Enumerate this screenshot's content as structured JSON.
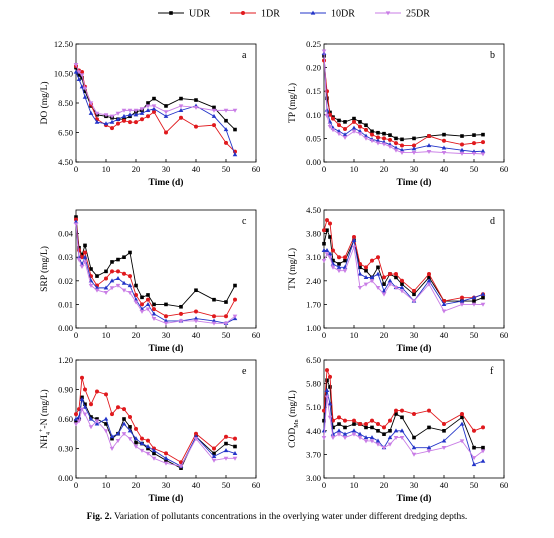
{
  "legend": [
    {
      "name": "UDR",
      "color": "#000000",
      "marker": "square"
    },
    {
      "name": "1DR",
      "color": "#e0191d",
      "marker": "circle"
    },
    {
      "name": "10DR",
      "color": "#2334c8",
      "marker": "triangle"
    },
    {
      "name": "25DR",
      "color": "#c97de6",
      "marker": "triangle-down"
    }
  ],
  "caption": {
    "label": "Fig. 2.",
    "text": "Variation of pollutants concentrations in the overlying water under different dredging depths."
  },
  "chart_data": [
    {
      "type": "line",
      "panel_label": "a",
      "xlabel": "Time (d)",
      "ylabel": "DO (mg/L)",
      "xlim": [
        0,
        60
      ],
      "ylim": [
        4.5,
        12.5
      ],
      "xticks": [
        "0",
        "10",
        "20",
        "30",
        "40",
        "50",
        "60"
      ],
      "yticks": [
        "4.50",
        "6.50",
        "8.50",
        "10.50",
        "12.50"
      ],
      "x": [
        0,
        1,
        2,
        3,
        5,
        7,
        10,
        12,
        14,
        16,
        18,
        20,
        22,
        24,
        26,
        30,
        35,
        40,
        46,
        50,
        53
      ],
      "series": [
        {
          "name": "UDR",
          "values": [
            10.9,
            10.4,
            10.2,
            9.3,
            8.3,
            7.7,
            7.6,
            7.5,
            7.4,
            7.4,
            7.6,
            7.9,
            8.0,
            8.5,
            8.8,
            8.3,
            8.8,
            8.7,
            8.2,
            7.3,
            6.7
          ]
        },
        {
          "name": "1DR",
          "values": [
            11.0,
            10.7,
            10.6,
            9.6,
            8.4,
            7.4,
            7.0,
            6.8,
            7.1,
            7.3,
            7.2,
            7.2,
            7.4,
            7.6,
            7.9,
            6.5,
            7.5,
            6.9,
            7.0,
            5.8,
            5.2
          ]
        },
        {
          "name": "10DR",
          "values": [
            10.6,
            10.1,
            9.6,
            8.9,
            7.8,
            7.2,
            7.1,
            7.2,
            7.4,
            7.6,
            7.7,
            7.7,
            7.8,
            8.0,
            8.1,
            7.6,
            8.0,
            8.3,
            7.6,
            6.7,
            5.0
          ]
        },
        {
          "name": "25DR",
          "values": [
            11.1,
            10.6,
            10.4,
            9.5,
            8.5,
            7.8,
            7.7,
            7.6,
            7.8,
            8.0,
            8.0,
            8.0,
            8.1,
            8.3,
            8.3,
            7.9,
            8.3,
            8.2,
            8.0,
            8.0,
            8.0
          ]
        }
      ]
    },
    {
      "type": "line",
      "panel_label": "b",
      "xlabel": "Time (d)",
      "ylabel": "TP (mg/L)",
      "xlim": [
        0,
        60
      ],
      "ylim": [
        0,
        0.25
      ],
      "xticks": [
        "0",
        "10",
        "20",
        "30",
        "40",
        "50",
        "60"
      ],
      "yticks": [
        "0.00",
        "0.05",
        "0.10",
        "0.15",
        "0.20",
        "0.25"
      ],
      "x": [
        0,
        1,
        2,
        3,
        5,
        7,
        10,
        12,
        14,
        16,
        18,
        20,
        22,
        24,
        26,
        30,
        35,
        40,
        46,
        50,
        53
      ],
      "series": [
        {
          "name": "UDR",
          "values": [
            0.225,
            0.135,
            0.105,
            0.095,
            0.088,
            0.085,
            0.092,
            0.085,
            0.078,
            0.065,
            0.062,
            0.06,
            0.057,
            0.05,
            0.048,
            0.05,
            0.055,
            0.058,
            0.055,
            0.057,
            0.058
          ]
        },
        {
          "name": "1DR",
          "values": [
            0.215,
            0.15,
            0.1,
            0.092,
            0.078,
            0.07,
            0.085,
            0.075,
            0.068,
            0.058,
            0.052,
            0.05,
            0.047,
            0.04,
            0.035,
            0.035,
            0.055,
            0.045,
            0.037,
            0.04,
            0.042
          ]
        },
        {
          "name": "10DR",
          "values": [
            0.23,
            0.11,
            0.085,
            0.072,
            0.065,
            0.058,
            0.072,
            0.065,
            0.055,
            0.048,
            0.045,
            0.042,
            0.037,
            0.03,
            0.025,
            0.028,
            0.035,
            0.03,
            0.025,
            0.022,
            0.023
          ]
        },
        {
          "name": "25DR",
          "values": [
            0.235,
            0.098,
            0.075,
            0.068,
            0.06,
            0.052,
            0.065,
            0.06,
            0.05,
            0.045,
            0.04,
            0.038,
            0.033,
            0.025,
            0.02,
            0.02,
            0.022,
            0.02,
            0.018,
            0.018,
            0.017
          ]
        }
      ]
    },
    {
      "type": "line",
      "panel_label": "c",
      "xlabel": "Time (d)",
      "ylabel": "SRP (mg/L)",
      "xlim": [
        0,
        60
      ],
      "ylim": [
        0,
        0.05
      ],
      "xticks": [
        "0",
        "10",
        "20",
        "30",
        "40",
        "50",
        "60"
      ],
      "yticks": [
        "0.00",
        "0.01",
        "0.02",
        "0.03",
        "0.04"
      ],
      "x": [
        0,
        1,
        2,
        3,
        5,
        7,
        10,
        12,
        14,
        16,
        18,
        20,
        22,
        24,
        26,
        30,
        35,
        40,
        46,
        50,
        53
      ],
      "series": [
        {
          "name": "UDR",
          "values": [
            0.047,
            0.034,
            0.031,
            0.035,
            0.025,
            0.022,
            0.024,
            0.028,
            0.029,
            0.03,
            0.032,
            0.018,
            0.013,
            0.014,
            0.01,
            0.01,
            0.009,
            0.016,
            0.012,
            0.011,
            0.018
          ]
        },
        {
          "name": "1DR",
          "values": [
            0.046,
            0.033,
            0.03,
            0.032,
            0.022,
            0.018,
            0.021,
            0.024,
            0.024,
            0.023,
            0.022,
            0.014,
            0.01,
            0.012,
            0.008,
            0.005,
            0.006,
            0.007,
            0.005,
            0.005,
            0.012
          ]
        },
        {
          "name": "10DR",
          "values": [
            0.045,
            0.03,
            0.027,
            0.03,
            0.02,
            0.017,
            0.017,
            0.02,
            0.021,
            0.019,
            0.018,
            0.012,
            0.008,
            0.01,
            0.006,
            0.003,
            0.003,
            0.004,
            0.003,
            0.002,
            0.004
          ]
        },
        {
          "name": "25DR",
          "values": [
            0.044,
            0.029,
            0.026,
            0.028,
            0.018,
            0.016,
            0.015,
            0.017,
            0.018,
            0.016,
            0.015,
            0.011,
            0.007,
            0.008,
            0.004,
            0.002,
            0.003,
            0.003,
            0.002,
            0.002,
            0.005
          ]
        }
      ]
    },
    {
      "type": "line",
      "panel_label": "d",
      "xlabel": "Time (d)",
      "ylabel": "TN (mg/L)",
      "xlim": [
        0,
        60
      ],
      "ylim": [
        1.0,
        4.5
      ],
      "xticks": [
        "0",
        "10",
        "20",
        "30",
        "40",
        "50",
        "60"
      ],
      "yticks": [
        "1.00",
        "1.70",
        "2.40",
        "3.10",
        "3.80",
        "4.50"
      ],
      "x": [
        0,
        1,
        2,
        3,
        5,
        7,
        10,
        12,
        14,
        16,
        18,
        20,
        22,
        24,
        26,
        30,
        35,
        40,
        46,
        50,
        53
      ],
      "series": [
        {
          "name": "UDR",
          "values": [
            3.5,
            3.9,
            3.7,
            3.0,
            2.9,
            3.0,
            3.6,
            2.8,
            2.7,
            2.5,
            2.8,
            2.3,
            2.6,
            2.5,
            2.3,
            2.0,
            2.5,
            1.8,
            1.8,
            1.8,
            1.9
          ]
        },
        {
          "name": "1DR",
          "values": [
            3.9,
            4.2,
            4.1,
            3.3,
            3.1,
            3.1,
            3.7,
            2.9,
            2.8,
            3.0,
            3.1,
            2.5,
            2.6,
            2.6,
            2.4,
            2.1,
            2.6,
            1.8,
            1.9,
            1.9,
            2.0
          ]
        },
        {
          "name": "10DR",
          "values": [
            3.3,
            3.3,
            3.2,
            2.9,
            2.8,
            2.8,
            3.6,
            2.6,
            2.5,
            2.5,
            2.6,
            2.1,
            2.4,
            2.2,
            2.2,
            1.8,
            2.4,
            1.7,
            1.8,
            1.9,
            2.0
          ]
        },
        {
          "name": "25DR",
          "values": [
            3.0,
            3.2,
            3.1,
            2.8,
            2.7,
            2.7,
            3.4,
            2.2,
            2.3,
            2.4,
            2.2,
            2.0,
            2.3,
            2.2,
            2.1,
            1.8,
            2.3,
            1.5,
            1.7,
            1.7,
            1.7
          ]
        }
      ]
    },
    {
      "type": "line",
      "panel_label": "e",
      "xlabel": "Time (d)",
      "ylabel": "NH4+-N (mg/L)",
      "xlim": [
        0,
        60
      ],
      "ylim": [
        0,
        1.2
      ],
      "xticks": [
        "0",
        "10",
        "20",
        "30",
        "40",
        "50",
        "60"
      ],
      "yticks": [
        "0.00",
        "0.30",
        "0.60",
        "0.90",
        "1.20"
      ],
      "x": [
        0,
        1,
        2,
        3,
        5,
        7,
        10,
        12,
        14,
        16,
        18,
        20,
        22,
        24,
        26,
        30,
        35,
        40,
        46,
        50,
        53
      ],
      "series": [
        {
          "name": "UDR",
          "values": [
            0.58,
            0.6,
            0.82,
            0.75,
            0.62,
            0.6,
            0.55,
            0.4,
            0.45,
            0.6,
            0.52,
            0.36,
            0.35,
            0.3,
            0.25,
            0.18,
            0.1,
            0.42,
            0.25,
            0.35,
            0.32
          ]
        },
        {
          "name": "1DR",
          "values": [
            0.65,
            0.7,
            1.02,
            0.9,
            0.75,
            0.88,
            0.85,
            0.65,
            0.72,
            0.7,
            0.62,
            0.5,
            0.4,
            0.38,
            0.3,
            0.25,
            0.16,
            0.45,
            0.3,
            0.42,
            0.4
          ]
        },
        {
          "name": "10DR",
          "values": [
            0.6,
            0.62,
            0.8,
            0.72,
            0.6,
            0.55,
            0.6,
            0.42,
            0.45,
            0.55,
            0.48,
            0.4,
            0.35,
            0.32,
            0.28,
            0.2,
            0.12,
            0.42,
            0.22,
            0.28,
            0.25
          ]
        },
        {
          "name": "25DR",
          "values": [
            0.55,
            0.58,
            0.7,
            0.65,
            0.52,
            0.58,
            0.48,
            0.3,
            0.38,
            0.45,
            0.4,
            0.32,
            0.28,
            0.25,
            0.2,
            0.15,
            0.12,
            0.4,
            0.18,
            0.2,
            0.2
          ]
        }
      ]
    },
    {
      "type": "line",
      "panel_label": "f",
      "xlabel": "Time (d)",
      "ylabel": "CODMn (mg/L)",
      "xlim": [
        0,
        60
      ],
      "ylim": [
        3.0,
        6.5
      ],
      "xticks": [
        "0",
        "10",
        "20",
        "30",
        "40",
        "50",
        "60"
      ],
      "yticks": [
        "3.00",
        "3.70",
        "4.40",
        "5.10",
        "5.80",
        "6.50"
      ],
      "x": [
        0,
        1,
        2,
        3,
        5,
        7,
        10,
        12,
        14,
        16,
        18,
        20,
        22,
        24,
        26,
        30,
        35,
        40,
        46,
        50,
        53
      ],
      "series": [
        {
          "name": "UDR",
          "values": [
            4.7,
            5.9,
            5.7,
            4.5,
            4.6,
            4.5,
            4.6,
            4.6,
            4.5,
            4.5,
            4.4,
            4.3,
            4.4,
            4.9,
            4.8,
            4.2,
            4.5,
            4.4,
            4.8,
            3.9,
            3.9
          ]
        },
        {
          "name": "1DR",
          "values": [
            5.0,
            6.2,
            6.0,
            4.7,
            4.8,
            4.7,
            4.7,
            4.6,
            4.6,
            4.7,
            4.6,
            4.5,
            4.7,
            5.0,
            5.0,
            4.9,
            5.0,
            4.6,
            4.9,
            4.4,
            4.5
          ]
        },
        {
          "name": "10DR",
          "values": [
            4.4,
            5.6,
            5.2,
            4.3,
            4.4,
            4.3,
            4.4,
            4.3,
            4.2,
            4.2,
            4.1,
            3.9,
            4.2,
            4.4,
            4.4,
            3.9,
            3.9,
            4.1,
            4.6,
            3.4,
            3.5
          ]
        },
        {
          "name": "25DR",
          "values": [
            4.2,
            5.4,
            4.8,
            4.2,
            4.3,
            4.2,
            4.3,
            4.2,
            4.1,
            4.1,
            4.0,
            3.9,
            4.0,
            4.2,
            4.2,
            3.7,
            3.8,
            3.9,
            4.1,
            3.6,
            3.8
          ]
        }
      ]
    }
  ]
}
